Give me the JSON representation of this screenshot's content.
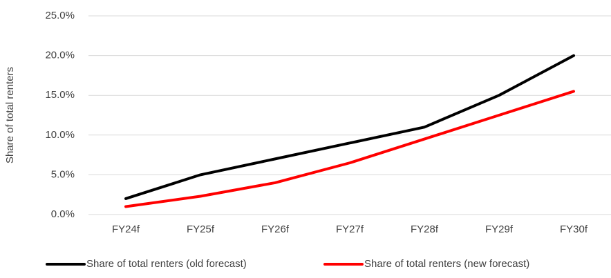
{
  "chart_data": {
    "type": "line",
    "y_label": "Share of total renters",
    "categories": [
      "FY24f",
      "FY25f",
      "FY26f",
      "FY27f",
      "FY28f",
      "FY29f",
      "FY30f"
    ],
    "series": [
      {
        "name": "Share of total renters (old forecast)",
        "color": "#000000",
        "values": [
          2.0,
          5.0,
          7.0,
          9.0,
          11.0,
          15.0,
          20.0
        ]
      },
      {
        "name": "Share of total renters (new forecast)",
        "color": "#ff0000",
        "values": [
          1.0,
          2.3,
          4.0,
          6.5,
          9.5,
          12.5,
          15.5
        ]
      }
    ],
    "ylim": [
      0,
      25
    ],
    "yticks": [
      {
        "value": 0,
        "label": "0.0%"
      },
      {
        "value": 5,
        "label": "5.0%"
      },
      {
        "value": 10,
        "label": "10.0%"
      },
      {
        "value": 15,
        "label": "15.0%"
      },
      {
        "value": 20,
        "label": "20.0%"
      },
      {
        "value": 25,
        "label": "25.0%"
      }
    ],
    "grid": true,
    "legend": "bottom"
  }
}
